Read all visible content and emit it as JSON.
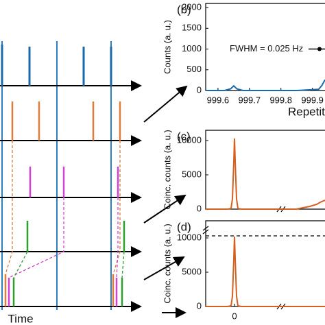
{
  "diagram": {
    "time_label": "Time"
  },
  "chart_data": [
    {
      "type": "line",
      "panel_label": "(b)",
      "ylabel": "Counts (a. u.)",
      "xlabel": "Repetiti",
      "annotation": "FWHM = 0.025 Hz",
      "xlim": [
        999.561,
        999.94
      ],
      "ylim": [
        0,
        2100
      ],
      "xticks": [
        999.6,
        999.7,
        999.8,
        999.9
      ],
      "yticks": [
        0,
        500,
        1000,
        1500,
        2000
      ],
      "series": [
        {
          "color": "#1a6aab",
          "x": [
            999.561,
            999.62,
            999.64,
            999.65,
            999.66,
            999.68,
            999.75,
            999.85,
            999.92,
            999.93,
            999.94
          ],
          "values": [
            0,
            0,
            40,
            110,
            40,
            0,
            0,
            0,
            30,
            120,
            260
          ]
        }
      ]
    },
    {
      "type": "line",
      "panel_label": "(c)",
      "ylabel": "Coinc. counts (a. u.)",
      "xlim": [
        -42,
        132
      ],
      "ylim": [
        0,
        11500
      ],
      "yticks": [
        0,
        5000,
        10000
      ],
      "series": [
        {
          "color": "#d45f1f",
          "x": [
            -42,
            -10,
            -5,
            -3,
            -1,
            0,
            1,
            3,
            5,
            10,
            60,
            90,
            110,
            120,
            125,
            132
          ],
          "values": [
            0,
            0,
            100,
            1500,
            7000,
            10300,
            7000,
            1500,
            100,
            0,
            0,
            0,
            400,
            700,
            1000,
            1300
          ]
        }
      ]
    },
    {
      "type": "line",
      "panel_label": "(d)",
      "ylabel": "Coinc. counts (a. u.)",
      "xlim": [
        -42,
        132
      ],
      "ylim": [
        0,
        12500
      ],
      "xticks": [
        0
      ],
      "yticks": [
        0,
        5000,
        10000
      ],
      "hline": 10300,
      "series": [
        {
          "color": "#d45f1f",
          "x": [
            -42,
            -10,
            -5,
            -3,
            -1,
            0,
            1,
            3,
            5,
            10,
            132
          ],
          "values": [
            0,
            0,
            100,
            1500,
            7000,
            10200,
            7000,
            1500,
            100,
            0,
            0
          ]
        }
      ]
    }
  ]
}
